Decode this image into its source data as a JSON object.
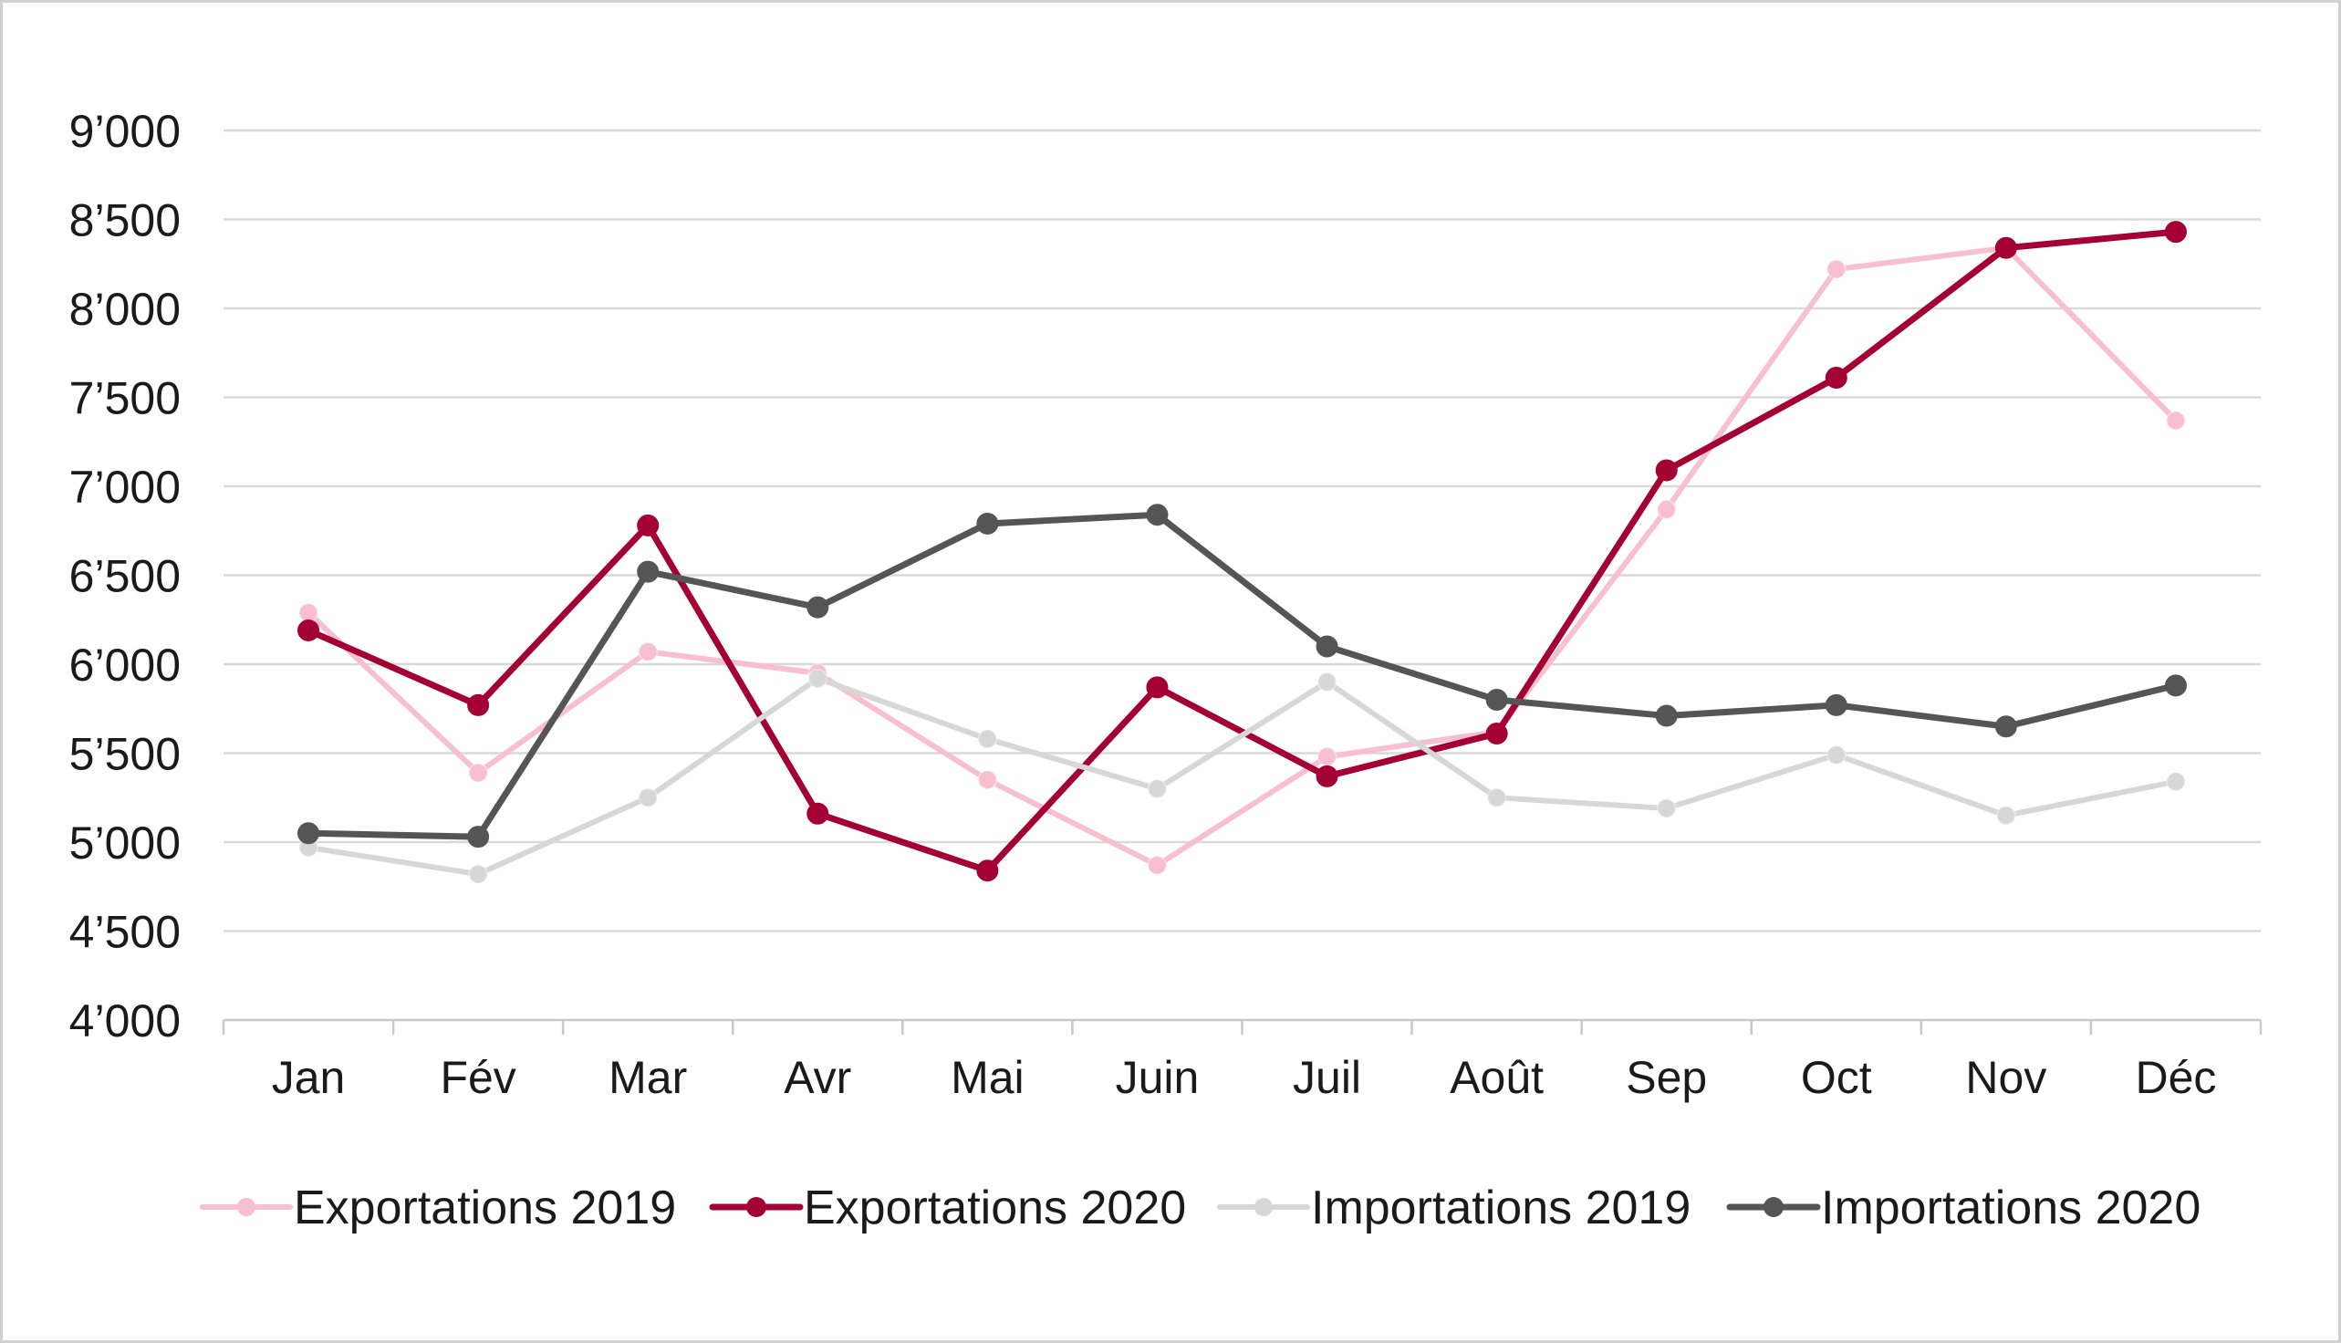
{
  "chart_data": {
    "type": "line",
    "categories": [
      "Jan",
      "Fév",
      "Mar",
      "Avr",
      "Mai",
      "Juin",
      "Juil",
      "Août",
      "Sep",
      "Oct",
      "Nov",
      "Déc"
    ],
    "ylim": [
      4000,
      9000
    ],
    "yticks": [
      4000,
      4500,
      5000,
      5500,
      6000,
      6500,
      7000,
      7500,
      8000,
      8500,
      9000
    ],
    "ytick_labels": [
      "4’000",
      "4’500",
      "5’000",
      "5’500",
      "6’000",
      "6’500",
      "7’000",
      "7’500",
      "8’000",
      "8’500",
      "9’000"
    ],
    "grid": true,
    "legend_position": "bottom",
    "series": [
      {
        "name": "Exportations 2019",
        "color": "#f7bfcf",
        "width": "thick-light",
        "values": [
          6290,
          5390,
          6070,
          5950,
          5350,
          4870,
          5480,
          5620,
          6870,
          8220,
          8340,
          7370
        ]
      },
      {
        "name": "Exportations 2020",
        "color": "#a50034",
        "width": "bold",
        "values": [
          6190,
          5770,
          6780,
          5160,
          4840,
          5870,
          5370,
          5610,
          7090,
          7610,
          8340,
          8430
        ]
      },
      {
        "name": "Importations 2019",
        "color": "#d7d7d7",
        "width": "thick-light",
        "values": [
          4970,
          4820,
          5250,
          5920,
          5580,
          5300,
          5900,
          5250,
          5190,
          5490,
          5150,
          5340
        ]
      },
      {
        "name": "Importations 2020",
        "color": "#555555",
        "width": "bold",
        "values": [
          5050,
          5030,
          6520,
          6320,
          6790,
          6840,
          6100,
          5800,
          5710,
          5770,
          5650,
          5880
        ]
      }
    ]
  }
}
